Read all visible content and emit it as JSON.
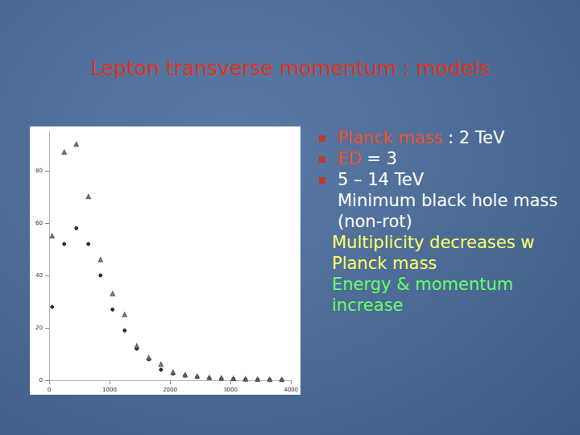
{
  "slide": {
    "title": "Lepton transverse momentum : models",
    "bullets": [
      [
        {
          "text": "Planck mass",
          "color": "#f0502a"
        },
        {
          "text": " : 2 TeV",
          "color": "#ffffff"
        }
      ],
      [
        {
          "text": "ED",
          "color": "#f0502a"
        },
        {
          "text": " = 3",
          "color": "#ffffff"
        }
      ],
      [
        {
          "text": "5 – 14 TeV",
          "color": "#ffffff"
        }
      ]
    ],
    "lines": [
      {
        "text": "Minimum black hole mass  (non-rot)",
        "color": "#ffffff"
      },
      {
        "text": "Multiplicity decreases w Planck mass",
        "color": "#ffff66"
      },
      {
        "text": "Energy & momentum increase",
        "color": "#66ff66"
      }
    ]
  },
  "chart_data": {
    "type": "scatter",
    "x": [
      50,
      250,
      450,
      650,
      850,
      1050,
      1250,
      1450,
      1650,
      1850,
      2050,
      2250,
      2450,
      2650,
      2850,
      3050,
      3250,
      3450,
      3650,
      3850
    ],
    "series": [
      {
        "color": "#000000",
        "marker": "circle",
        "values": [
          28,
          52,
          58,
          52,
          40,
          27,
          19,
          12,
          8,
          4,
          2.5,
          1.8,
          1.2,
          0.8,
          0.6,
          0.5,
          0.3,
          0.2,
          0.2,
          0.1
        ]
      },
      {
        "color": "#444444",
        "marker": "open_triangle",
        "values": [
          55,
          87,
          90,
          70,
          46,
          33,
          25,
          13,
          8.5,
          6,
          3,
          2,
          1.5,
          1,
          0.8,
          0.6,
          0.4,
          0.3,
          0.2,
          0.2
        ]
      }
    ],
    "xlim": [
      0,
      4000
    ],
    "xticks": [
      0,
      1000,
      2000,
      3000,
      4000
    ],
    "ylim": [
      0,
      95
    ],
    "yticks": [
      0,
      20,
      40,
      60,
      80
    ],
    "grid": false
  }
}
